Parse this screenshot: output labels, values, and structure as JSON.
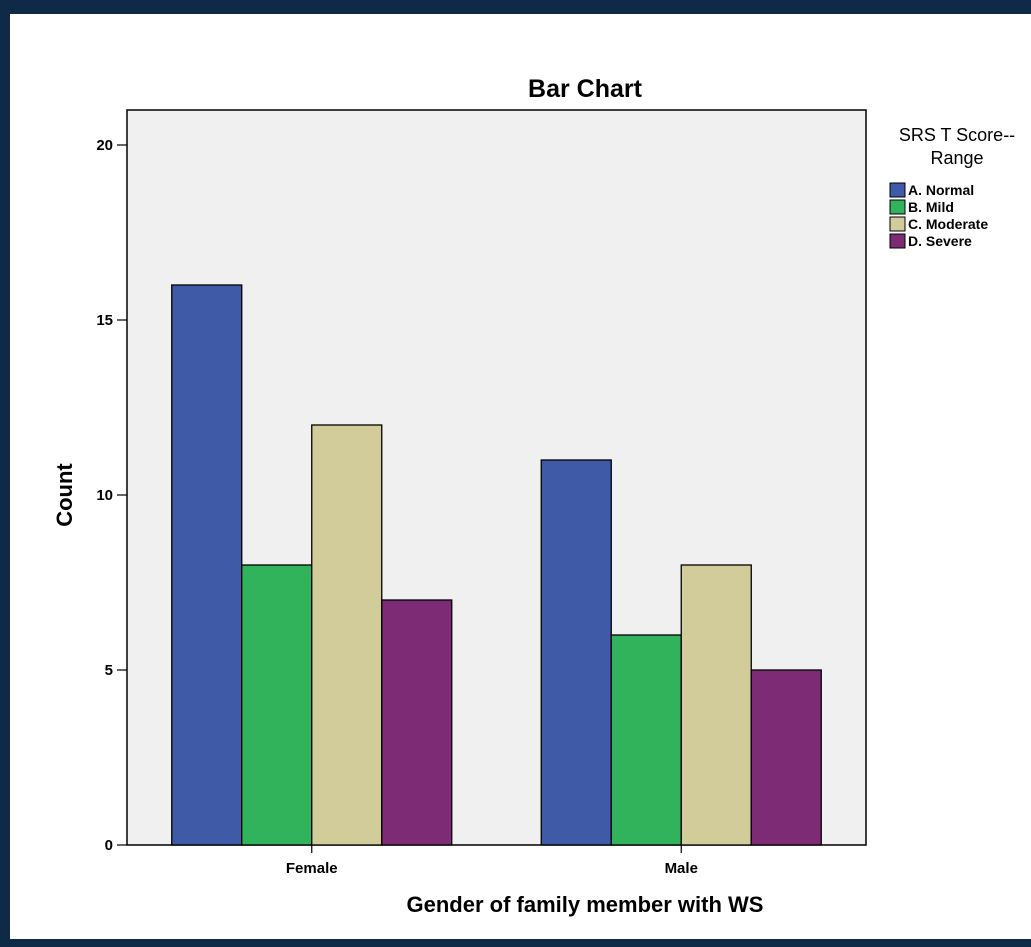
{
  "chart_data": {
    "type": "bar",
    "title": "Bar Chart",
    "xlabel": "Gender of family member with WS",
    "ylabel": "Count",
    "categories": [
      "Female",
      "Male"
    ],
    "ylim": [
      0,
      21
    ],
    "yticks": [
      0,
      5,
      10,
      15,
      20
    ],
    "grid": false,
    "legend_title": "SRS T Score-- Range",
    "legend_title_lines": [
      "SRS T Score--",
      "Range"
    ],
    "legend_placement": "right",
    "plot_background": "#f0f0f0",
    "series": [
      {
        "name": "A. Normal",
        "color": "#3f5aa6",
        "values": [
          16,
          11
        ]
      },
      {
        "name": "B. Mild",
        "color": "#31b35b",
        "values": [
          8,
          6
        ]
      },
      {
        "name": "C. Moderate",
        "color": "#d2cc9a",
        "values": [
          12,
          8
        ]
      },
      {
        "name": "D. Severe",
        "color": "#7d2b74",
        "values": [
          7,
          5
        ]
      }
    ]
  }
}
